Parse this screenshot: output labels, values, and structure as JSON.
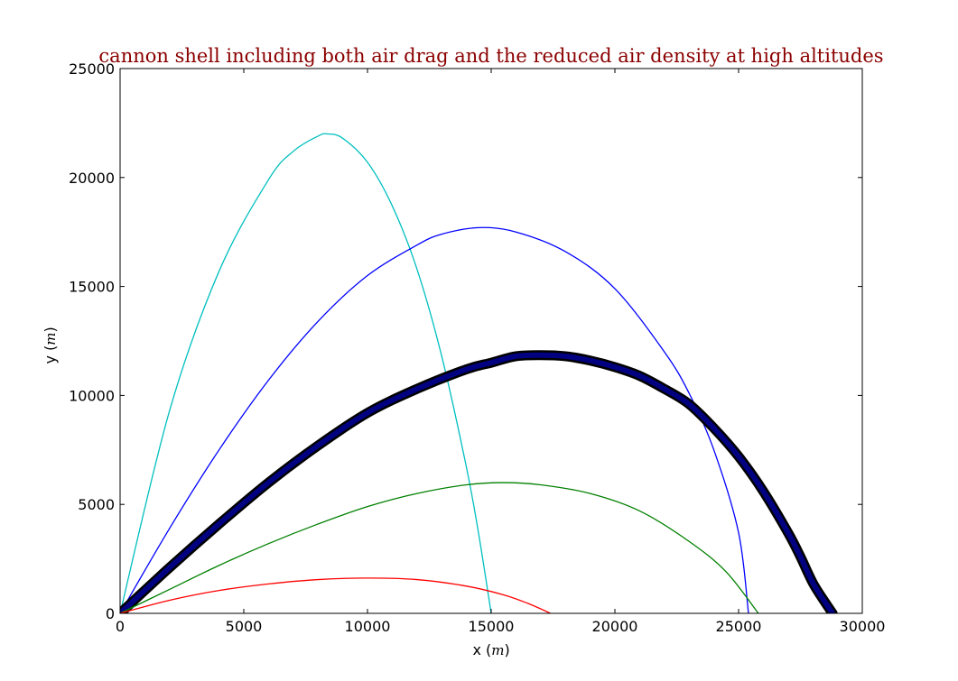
{
  "chart_data": {
    "type": "line",
    "title": "cannon shell including both air drag and the reduced air density at high altitudes",
    "xlabel": "x",
    "xlabel_unit": "m",
    "ylabel": "y",
    "ylabel_unit": "m",
    "xlim": [
      0,
      30000
    ],
    "ylim": [
      0,
      25000
    ],
    "xticks": [
      0,
      5000,
      10000,
      15000,
      20000,
      25000,
      30000
    ],
    "yticks": [
      0,
      5000,
      10000,
      15000,
      20000,
      25000
    ],
    "grid": false,
    "legend": "none",
    "series": [
      {
        "name": "cyan trajectory",
        "color": "#00bfbf",
        "style": "thin",
        "x": [
          0,
          2000,
          4000,
          6000,
          7000,
          8000,
          8400,
          9000,
          10000,
          11000,
          12000,
          13000,
          14000,
          14500,
          15000
        ],
        "y": [
          0,
          9300,
          15700,
          19900,
          21200,
          21900,
          22000,
          21800,
          20700,
          18700,
          15800,
          11800,
          6700,
          3600,
          0
        ]
      },
      {
        "name": "blue trajectory",
        "color": "#0000ff",
        "style": "thin",
        "x": [
          0,
          2000,
          4000,
          6000,
          8000,
          10000,
          12000,
          13000,
          14500,
          16000,
          18000,
          20000,
          22000,
          23000,
          24000,
          25000,
          25400
        ],
        "y": [
          0,
          3900,
          7500,
          10700,
          13400,
          15500,
          16900,
          17400,
          17700,
          17500,
          16600,
          14900,
          12000,
          10100,
          7500,
          3700,
          0
        ]
      },
      {
        "name": "black thick trajectory",
        "color": "#000080",
        "style": "thick",
        "x": [
          0,
          2000,
          4000,
          6000,
          8000,
          10000,
          12000,
          14000,
          15000,
          16000,
          17000,
          18000,
          19000,
          20000,
          21000,
          22000,
          23000,
          24000,
          25000,
          26000,
          27000,
          27500,
          28000,
          28500,
          28800
        ],
        "y": [
          0,
          2100,
          4100,
          6000,
          7700,
          9200,
          10300,
          11200,
          11500,
          11800,
          11850,
          11800,
          11600,
          11300,
          10900,
          10300,
          9600,
          8500,
          7200,
          5600,
          3700,
          2600,
          1400,
          500,
          0
        ]
      },
      {
        "name": "green trajectory",
        "color": "#008000",
        "style": "thin",
        "x": [
          0,
          2000,
          4000,
          6000,
          8000,
          10000,
          12000,
          14000,
          15500,
          17000,
          19000,
          21000,
          23000,
          24500,
          25800
        ],
        "y": [
          0,
          1100,
          2200,
          3200,
          4100,
          4900,
          5500,
          5900,
          6000,
          5900,
          5500,
          4700,
          3300,
          1900,
          0
        ]
      },
      {
        "name": "red trajectory",
        "color": "#ff0000",
        "style": "thin",
        "x": [
          0,
          2000,
          4000,
          6000,
          8000,
          10000,
          12000,
          14000,
          15500,
          16500,
          17400
        ],
        "y": [
          0,
          600,
          1050,
          1350,
          1550,
          1620,
          1550,
          1250,
          850,
          450,
          0
        ]
      }
    ]
  }
}
